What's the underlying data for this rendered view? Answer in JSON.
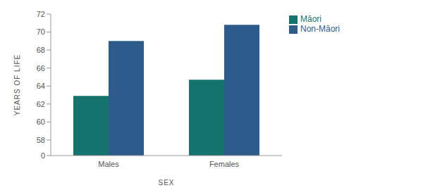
{
  "chart_data": {
    "type": "bar",
    "x_label": "SEX",
    "y_label": "YEARS OF LIFE",
    "categories": [
      "Males",
      "Females"
    ],
    "series": [
      {
        "name": "Māori",
        "color": "#14736d",
        "values": [
          62.9,
          64.7
        ]
      },
      {
        "name": "Non-Māori",
        "color": "#2d5b8c",
        "values": [
          69.0,
          70.8
        ]
      }
    ],
    "ylim": [
      0,
      72
    ],
    "yticks": [
      0,
      58,
      60,
      62,
      64,
      66,
      68,
      70,
      72
    ],
    "grid": false,
    "legend": "upper right"
  }
}
